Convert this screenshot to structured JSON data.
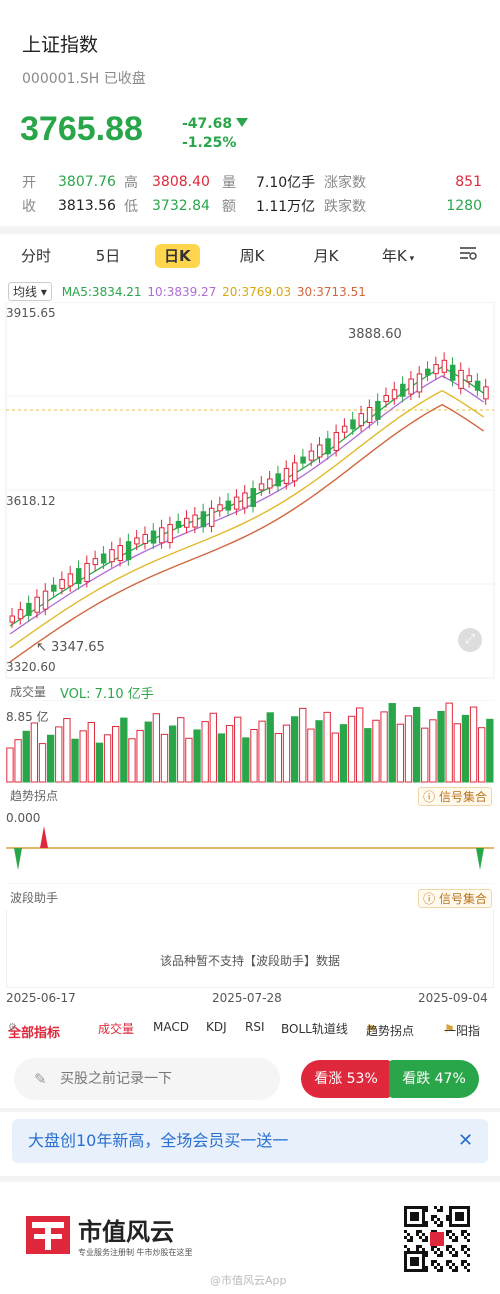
{
  "header": {
    "title": "上证指数",
    "code": "000001.SH 已收盘",
    "price": "3765.88",
    "change": "-47.68",
    "change_pct": "-1.25%"
  },
  "stats": {
    "open_label": "开",
    "open": "3807.76",
    "high_label": "高",
    "high": "3808.40",
    "vol_label": "量",
    "vol": "7.10亿手",
    "up_label": "涨家数",
    "up": "851",
    "close_label": "收",
    "close": "3813.56",
    "low_label": "低",
    "low": "3732.84",
    "amt_label": "额",
    "amt": "1.11万亿",
    "down_label": "跌家数",
    "down": "1280"
  },
  "tabs": [
    "分时",
    "5日",
    "日K",
    "周K",
    "月K",
    "年K"
  ],
  "active_tab": "日K",
  "ma": {
    "selector": "均线",
    "ma5": "MA5:3834.21",
    "ma10": "10:3839.27",
    "ma20": "20:3769.03",
    "ma30": "30:3713.51"
  },
  "kline": {
    "top_label": "3915.65",
    "mid_label": "3618.12",
    "bottom_label": "3320.60",
    "max_label": "3888.60",
    "min_label": "3347.65"
  },
  "volume": {
    "label": "成交量",
    "vol_text": "VOL: 7.10 亿手",
    "max_label": "8.85 亿"
  },
  "trend": {
    "label": "趋势拐点",
    "signal_btn": "信号集合",
    "value": "0.000"
  },
  "wave": {
    "label": "波段助手",
    "signal_btn": "信号集合",
    "unsupported": "该品种暂不支持【波段助手】数据"
  },
  "dates": [
    "2025-06-17",
    "2025-07-28",
    "2025-09-04"
  ],
  "indicators": {
    "all": "全部指标",
    "items": [
      "成交量",
      "MACD",
      "KDJ",
      "RSI",
      "BOLL轨道线",
      "趋势拐点",
      "一阳指"
    ]
  },
  "actions": {
    "note_placeholder": "买股之前记录一下",
    "bull": "看涨 53%",
    "bear": "看跌 47%"
  },
  "banner": "大盘创10年新高，全场会员买一送一",
  "footer": {
    "brand": "市值风云",
    "slogan": "专业服务注册制  牛市炒股在这里",
    "weibo": "@市值风云App"
  },
  "colors": {
    "up": "#e0283c",
    "down": "#2aa64a",
    "accent": "#ffd64d"
  }
}
